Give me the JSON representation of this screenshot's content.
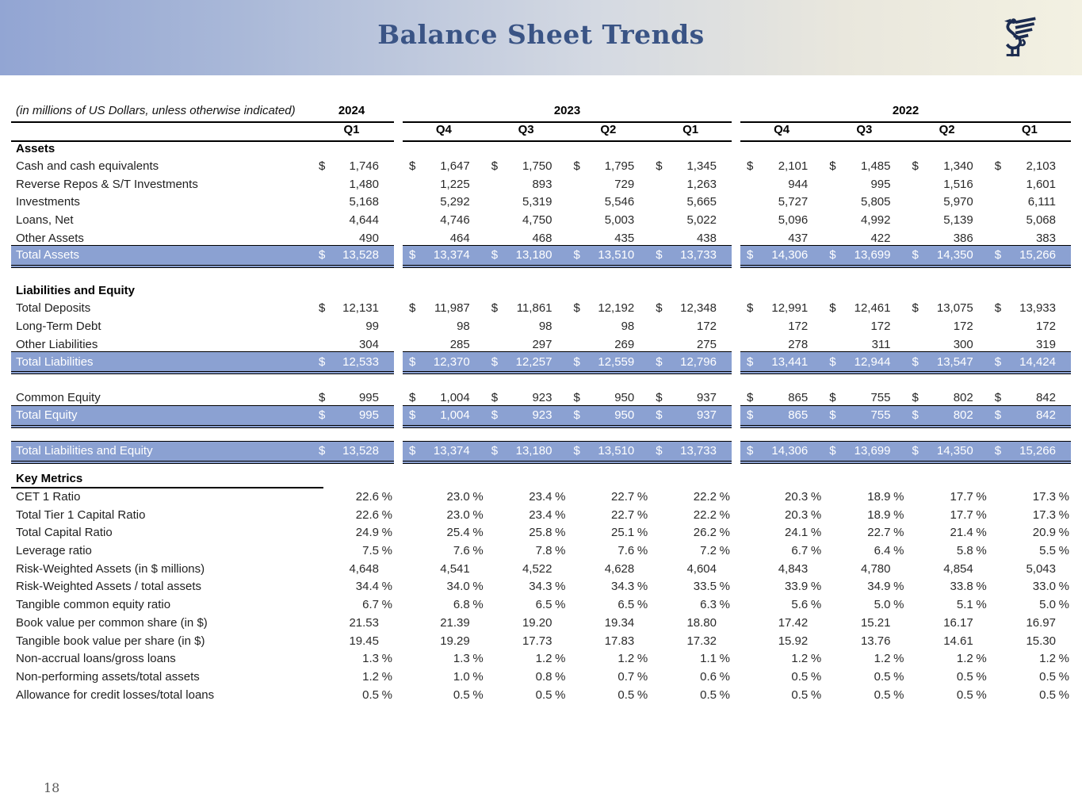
{
  "header": {
    "title": "Balance Sheet Trends",
    "logo": "griffin-logo"
  },
  "page_number": "18",
  "table": {
    "note": "(in millions of US Dollars, unless otherwise indicated)",
    "year_groups": [
      {
        "label": "2024"
      },
      {
        "label": "2023"
      },
      {
        "label": "2022"
      }
    ],
    "quarters": [
      "Q1",
      "Q4",
      "Q3",
      "Q2",
      "Q1",
      "Q4",
      "Q3",
      "Q2",
      "Q1"
    ],
    "highlight_color": "#8ba1d2",
    "sections": [
      {
        "title": "Assets",
        "rows": [
          {
            "label": "Cash and cash equivalents",
            "dollar": true,
            "values": [
              "1,746",
              "1,647",
              "1,750",
              "1,795",
              "1,345",
              "2,101",
              "1,485",
              "1,340",
              "2,103"
            ]
          },
          {
            "label": "Reverse Repos & S/T Investments",
            "values": [
              "1,480",
              "1,225",
              "893",
              "729",
              "1,263",
              "944",
              "995",
              "1,516",
              "1,601"
            ]
          },
          {
            "label": "Investments",
            "values": [
              "5,168",
              "5,292",
              "5,319",
              "5,546",
              "5,665",
              "5,727",
              "5,805",
              "5,970",
              "6,111"
            ]
          },
          {
            "label": "Loans, Net",
            "values": [
              "4,644",
              "4,746",
              "4,750",
              "5,003",
              "5,022",
              "5,096",
              "4,992",
              "5,139",
              "5,068"
            ]
          },
          {
            "label": "Other Assets",
            "values": [
              "490",
              "464",
              "468",
              "435",
              "438",
              "437",
              "422",
              "386",
              "383"
            ]
          },
          {
            "label": "Total Assets",
            "dollar": true,
            "highlight": true,
            "values": [
              "13,528",
              "13,374",
              "13,180",
              "13,510",
              "13,733",
              "14,306",
              "13,699",
              "14,350",
              "15,266"
            ]
          }
        ]
      },
      {
        "title": "Liabilities and Equity",
        "pre_spacer": true,
        "rows": [
          {
            "label": "Total Deposits",
            "dollar": true,
            "values": [
              "12,131",
              "11,987",
              "11,861",
              "12,192",
              "12,348",
              "12,991",
              "12,461",
              "13,075",
              "13,933"
            ]
          },
          {
            "label": "Long-Term Debt",
            "values": [
              "99",
              "98",
              "98",
              "98",
              "172",
              "172",
              "172",
              "172",
              "172"
            ]
          },
          {
            "label": "Other Liabilities",
            "values": [
              "304",
              "285",
              "297",
              "269",
              "275",
              "278",
              "311",
              "300",
              "319"
            ]
          },
          {
            "label": "Total Liabilities",
            "dollar": true,
            "highlight": true,
            "values": [
              "12,533",
              "12,370",
              "12,257",
              "12,559",
              "12,796",
              "13,441",
              "12,944",
              "13,547",
              "14,424"
            ]
          }
        ]
      },
      {
        "pre_spacer": true,
        "rows": [
          {
            "label": "Common Equity",
            "dollar": true,
            "values": [
              "995",
              "1,004",
              "923",
              "950",
              "937",
              "865",
              "755",
              "802",
              "842"
            ]
          },
          {
            "label": "Total Equity",
            "dollar": true,
            "highlight": true,
            "values": [
              "995",
              "1,004",
              "923",
              "950",
              "937",
              "865",
              "755",
              "802",
              "842"
            ]
          }
        ]
      },
      {
        "pre_spacer": true,
        "rows": [
          {
            "label": "Total Liabilities and Equity",
            "dollar": true,
            "highlight": true,
            "values": [
              "13,528",
              "13,374",
              "13,180",
              "13,510",
              "13,733",
              "14,306",
              "13,699",
              "14,350",
              "15,266"
            ]
          }
        ]
      },
      {
        "title": "Key Metrics",
        "title_underline": true,
        "pre_spacer_small": true,
        "rows": [
          {
            "label": "CET 1 Ratio",
            "suffix": "%",
            "values": [
              "22.6",
              "23.0",
              "23.4",
              "22.7",
              "22.2",
              "20.3",
              "18.9",
              "17.7",
              "17.3"
            ]
          },
          {
            "label": "Total Tier 1 Capital Ratio",
            "suffix": "%",
            "values": [
              "22.6",
              "23.0",
              "23.4",
              "22.7",
              "22.2",
              "20.3",
              "18.9",
              "17.7",
              "17.3"
            ]
          },
          {
            "label": "Total Capital Ratio",
            "suffix": "%",
            "values": [
              "24.9",
              "25.4",
              "25.8",
              "25.1",
              "26.2",
              "24.1",
              "22.7",
              "21.4",
              "20.9"
            ]
          },
          {
            "label": "Leverage ratio",
            "suffix": "%",
            "values": [
              "7.5",
              "7.6",
              "7.8",
              "7.6",
              "7.2",
              "6.7",
              "6.4",
              "5.8",
              "5.5"
            ]
          },
          {
            "label": "Risk-Weighted Assets (in $ millions)",
            "values": [
              "4,648",
              "4,541",
              "4,522",
              "4,628",
              "4,604",
              "4,843",
              "4,780",
              "4,854",
              "5,043"
            ]
          },
          {
            "label": "Risk-Weighted Assets / total assets",
            "suffix": "%",
            "values": [
              "34.4",
              "34.0",
              "34.3",
              "34.3",
              "33.5",
              "33.9",
              "34.9",
              "33.8",
              "33.0"
            ]
          },
          {
            "label": "Tangible common equity ratio",
            "suffix": "%",
            "values": [
              "6.7",
              "6.8",
              "6.5",
              "6.5",
              "6.3",
              "5.6",
              "5.0",
              "5.1",
              "5.0"
            ]
          },
          {
            "label": "Book value per common share (in $)",
            "values": [
              "21.53",
              "21.39",
              "19.20",
              "19.34",
              "18.80",
              "17.42",
              "15.21",
              "16.17",
              "16.97"
            ]
          },
          {
            "label": "Tangible book value per share (in $)",
            "values": [
              "19.45",
              "19.29",
              "17.73",
              "17.83",
              "17.32",
              "15.92",
              "13.76",
              "14.61",
              "15.30"
            ]
          },
          {
            "label": "Non-accrual loans/gross loans",
            "suffix": "%",
            "values": [
              "1.3",
              "1.3",
              "1.2",
              "1.2",
              "1.1",
              "1.2",
              "1.2",
              "1.2",
              "1.2"
            ]
          },
          {
            "label": "Non-performing assets/total assets",
            "suffix": "%",
            "values": [
              "1.2",
              "1.0",
              "0.8",
              "0.7",
              "0.6",
              "0.5",
              "0.5",
              "0.5",
              "0.5"
            ]
          },
          {
            "label": "Allowance for credit losses/total loans",
            "suffix": "%",
            "values": [
              "0.5",
              "0.5",
              "0.5",
              "0.5",
              "0.5",
              "0.5",
              "0.5",
              "0.5",
              "0.5"
            ]
          }
        ]
      }
    ]
  }
}
